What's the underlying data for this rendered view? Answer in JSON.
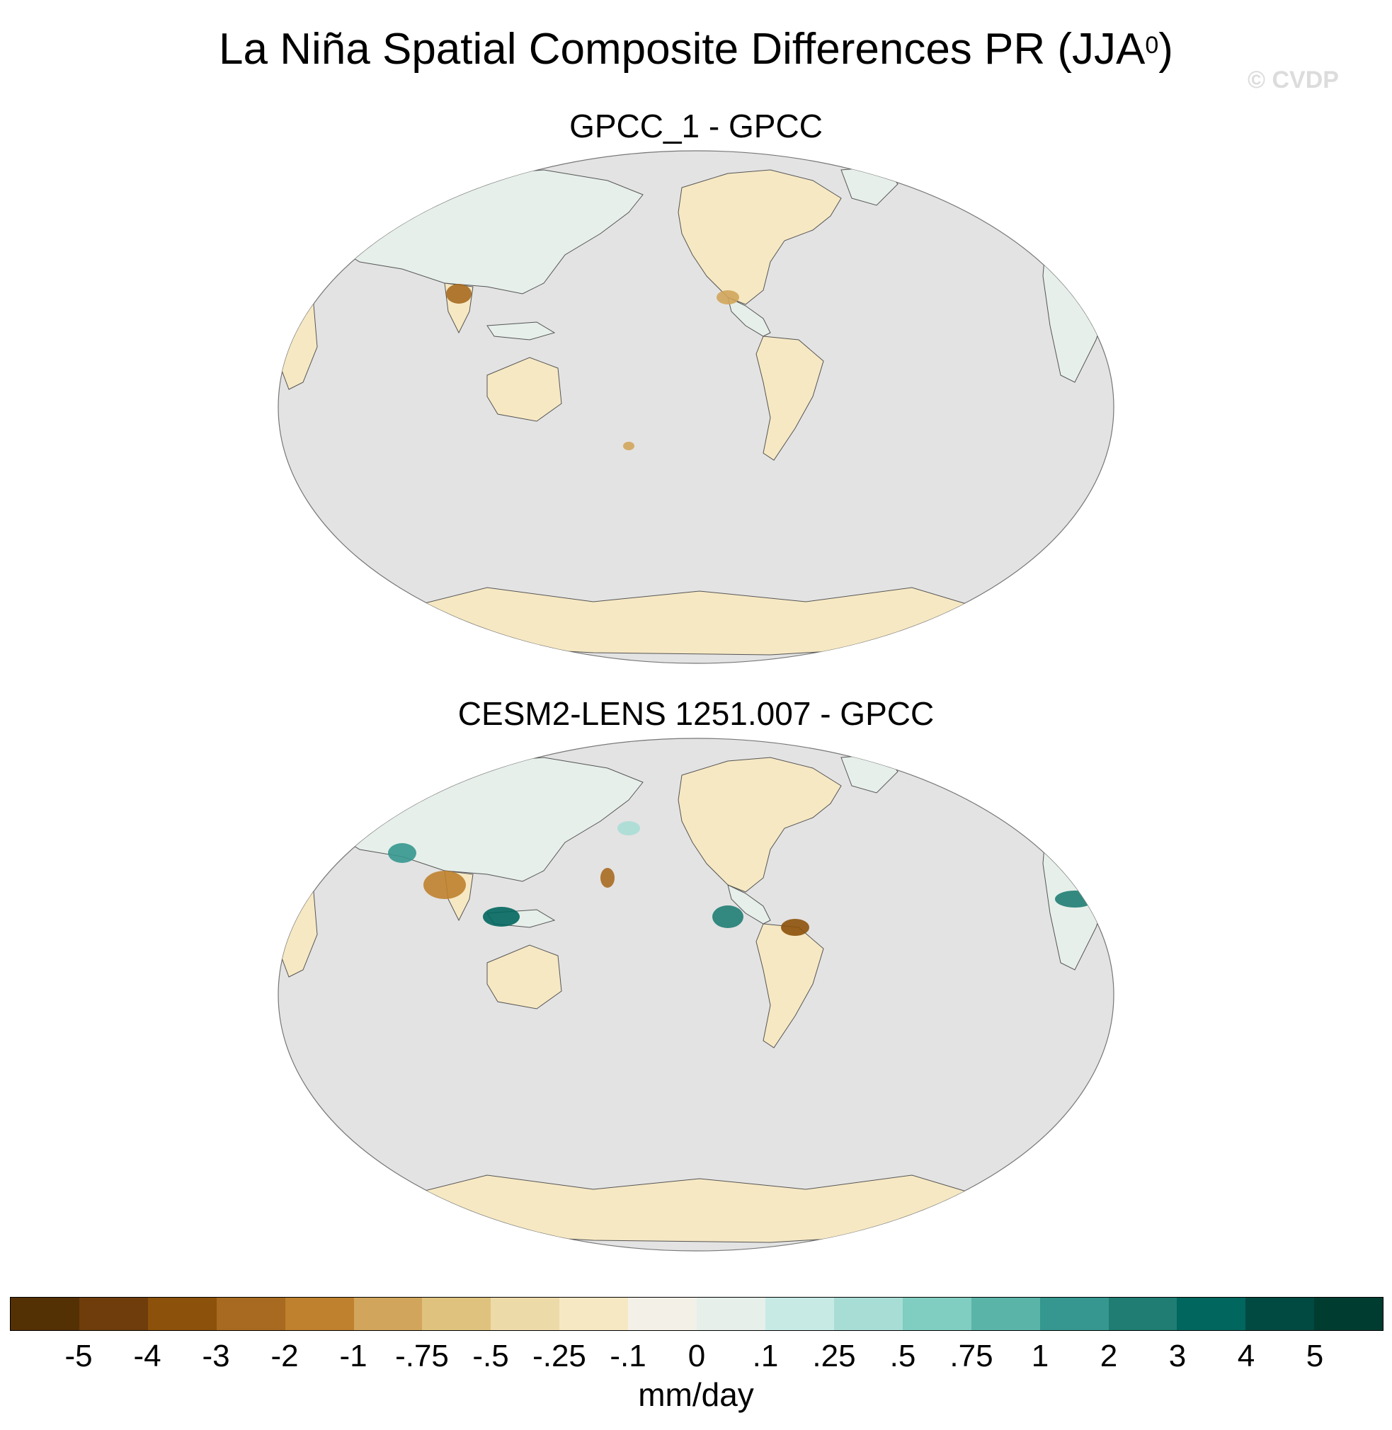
{
  "title": {
    "main": "La Niña Spatial Composite Differences PR (JJA",
    "sup": "0",
    "close": ")"
  },
  "watermark": "© CVDP",
  "panels": [
    {
      "title": "GPCC_1 - GPCC"
    },
    {
      "title": "CESM2-LENS 1251.007 - GPCC"
    }
  ],
  "colors": {
    "ocean": "#e3e3e3",
    "coast": "#555555"
  },
  "colorbar": {
    "units": "mm/day",
    "colors": [
      "#543005",
      "#6f3d0b",
      "#8c510a",
      "#a76a20",
      "#bf812d",
      "#d1a55b",
      "#dfc27d",
      "#eddaa9",
      "#f6e8c3",
      "#f3f0e8",
      "#e6efea",
      "#c7eae5",
      "#a8ddd5",
      "#80cdc1",
      "#5ab4a8",
      "#35978f",
      "#1f7d73",
      "#01665e",
      "#014a41",
      "#003c30"
    ],
    "labels": [
      "-5",
      "-4",
      "-3",
      "-2",
      "-1",
      "-.75",
      "-.5",
      "-.25",
      "-.1",
      "0",
      ".1",
      ".25",
      ".5",
      ".75",
      "1",
      "2",
      "3",
      "4",
      "5"
    ]
  }
}
